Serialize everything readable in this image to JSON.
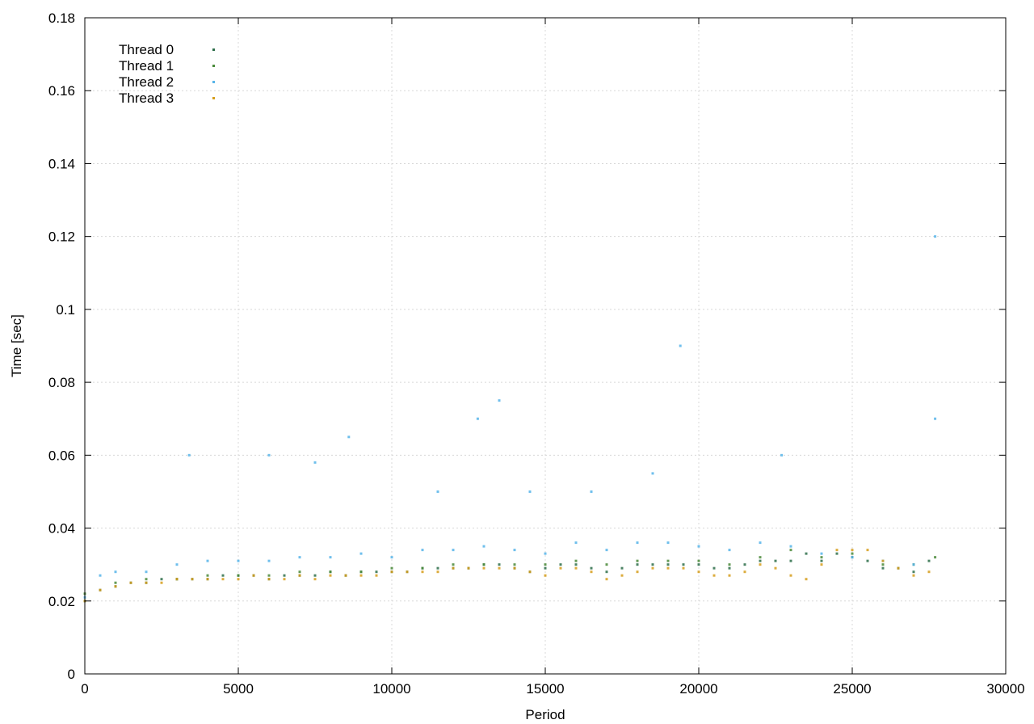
{
  "chart_data": {
    "type": "scatter",
    "title": "",
    "xlabel": "Period",
    "ylabel": "Time [sec]",
    "xlim": [
      0,
      30000
    ],
    "ylim": [
      0,
      0.18
    ],
    "x_ticks": [
      0,
      5000,
      10000,
      15000,
      20000,
      25000,
      30000
    ],
    "x_tick_labels": [
      "0",
      "5000",
      "10000",
      "15000",
      "20000",
      "25000",
      "30000"
    ],
    "y_ticks": [
      0,
      0.02,
      0.04,
      0.06,
      0.08,
      0.1,
      0.12,
      0.14,
      0.16,
      0.18
    ],
    "y_tick_labels": [
      "0",
      "0.02",
      "0.04",
      "0.06",
      "0.08",
      "0.1",
      "0.12",
      "0.14",
      "0.16",
      "0.18"
    ],
    "grid": true,
    "legend_position": "top-left",
    "series": [
      {
        "name": "Thread 0",
        "color": "#2e6e4a",
        "points": [
          [
            0,
            0.02
          ],
          [
            500,
            0.023
          ],
          [
            1000,
            0.024
          ],
          [
            1500,
            0.025
          ],
          [
            2000,
            0.025
          ],
          [
            2500,
            0.026
          ],
          [
            3000,
            0.026
          ],
          [
            3500,
            0.026
          ],
          [
            4000,
            0.026
          ],
          [
            4500,
            0.027
          ],
          [
            5000,
            0.027
          ],
          [
            5500,
            0.027
          ],
          [
            6000,
            0.026
          ],
          [
            6500,
            0.027
          ],
          [
            7000,
            0.027
          ],
          [
            7500,
            0.027
          ],
          [
            8000,
            0.028
          ],
          [
            8500,
            0.027
          ],
          [
            9000,
            0.028
          ],
          [
            9500,
            0.028
          ],
          [
            10000,
            0.028
          ],
          [
            10500,
            0.028
          ],
          [
            11000,
            0.029
          ],
          [
            11500,
            0.029
          ],
          [
            12000,
            0.029
          ],
          [
            12500,
            0.029
          ],
          [
            13000,
            0.03
          ],
          [
            13500,
            0.03
          ],
          [
            14000,
            0.029
          ],
          [
            14500,
            0.028
          ],
          [
            15000,
            0.029
          ],
          [
            15500,
            0.03
          ],
          [
            16000,
            0.03
          ],
          [
            16500,
            0.029
          ],
          [
            17000,
            0.028
          ],
          [
            17500,
            0.029
          ],
          [
            18000,
            0.03
          ],
          [
            18500,
            0.03
          ],
          [
            19000,
            0.03
          ],
          [
            19500,
            0.03
          ],
          [
            20000,
            0.03
          ],
          [
            20500,
            0.029
          ],
          [
            21000,
            0.029
          ],
          [
            21500,
            0.03
          ],
          [
            22000,
            0.031
          ],
          [
            22500,
            0.031
          ],
          [
            23000,
            0.031
          ],
          [
            23500,
            0.033
          ],
          [
            24000,
            0.031
          ],
          [
            24500,
            0.033
          ],
          [
            25000,
            0.032
          ],
          [
            25500,
            0.031
          ],
          [
            26000,
            0.029
          ],
          [
            26500,
            0.029
          ],
          [
            27000,
            0.028
          ],
          [
            27500,
            0.031
          ]
        ]
      },
      {
        "name": "Thread 1",
        "color": "#4a8a3a",
        "points": [
          [
            0,
            0.022
          ],
          [
            1000,
            0.025
          ],
          [
            2000,
            0.026
          ],
          [
            3000,
            0.026
          ],
          [
            4000,
            0.027
          ],
          [
            5000,
            0.027
          ],
          [
            6000,
            0.027
          ],
          [
            7000,
            0.028
          ],
          [
            8000,
            0.028
          ],
          [
            9000,
            0.028
          ],
          [
            10000,
            0.029
          ],
          [
            11000,
            0.029
          ],
          [
            12000,
            0.03
          ],
          [
            13000,
            0.03
          ],
          [
            14000,
            0.03
          ],
          [
            15000,
            0.03
          ],
          [
            16000,
            0.031
          ],
          [
            17000,
            0.03
          ],
          [
            18000,
            0.031
          ],
          [
            19000,
            0.031
          ],
          [
            20000,
            0.031
          ],
          [
            21000,
            0.03
          ],
          [
            22000,
            0.032
          ],
          [
            23000,
            0.034
          ],
          [
            24000,
            0.032
          ],
          [
            25000,
            0.033
          ],
          [
            26000,
            0.03
          ],
          [
            27000,
            0.03
          ],
          [
            27700,
            0.032
          ]
        ]
      },
      {
        "name": "Thread 2",
        "color": "#56b4e9",
        "points": [
          [
            0,
            0.021
          ],
          [
            500,
            0.027
          ],
          [
            1000,
            0.028
          ],
          [
            2000,
            0.028
          ],
          [
            3000,
            0.03
          ],
          [
            3400,
            0.06
          ],
          [
            4000,
            0.031
          ],
          [
            5000,
            0.031
          ],
          [
            6000,
            0.031
          ],
          [
            6000,
            0.06
          ],
          [
            7000,
            0.032
          ],
          [
            7500,
            0.058
          ],
          [
            8000,
            0.032
          ],
          [
            8600,
            0.065
          ],
          [
            9000,
            0.033
          ],
          [
            10000,
            0.032
          ],
          [
            11000,
            0.034
          ],
          [
            11500,
            0.05
          ],
          [
            12000,
            0.034
          ],
          [
            12800,
            0.07
          ],
          [
            13000,
            0.035
          ],
          [
            13500,
            0.075
          ],
          [
            14000,
            0.034
          ],
          [
            14500,
            0.05
          ],
          [
            15000,
            0.033
          ],
          [
            16000,
            0.036
          ],
          [
            16500,
            0.05
          ],
          [
            17000,
            0.034
          ],
          [
            18000,
            0.036
          ],
          [
            18500,
            0.055
          ],
          [
            19000,
            0.036
          ],
          [
            19400,
            0.09
          ],
          [
            20000,
            0.035
          ],
          [
            21000,
            0.034
          ],
          [
            22000,
            0.036
          ],
          [
            22700,
            0.06
          ],
          [
            23000,
            0.035
          ],
          [
            24000,
            0.033
          ],
          [
            25000,
            0.032
          ],
          [
            26000,
            0.031
          ],
          [
            27000,
            0.03
          ],
          [
            27700,
            0.07
          ],
          [
            27700,
            0.12
          ]
        ]
      },
      {
        "name": "Thread 3",
        "color": "#d69e1c",
        "points": [
          [
            0,
            0.02
          ],
          [
            500,
            0.023
          ],
          [
            1000,
            0.024
          ],
          [
            1500,
            0.025
          ],
          [
            2000,
            0.025
          ],
          [
            2500,
            0.025
          ],
          [
            3000,
            0.026
          ],
          [
            3500,
            0.026
          ],
          [
            4000,
            0.026
          ],
          [
            4500,
            0.026
          ],
          [
            5000,
            0.026
          ],
          [
            5500,
            0.027
          ],
          [
            6000,
            0.026
          ],
          [
            6500,
            0.026
          ],
          [
            7000,
            0.027
          ],
          [
            7500,
            0.026
          ],
          [
            8000,
            0.027
          ],
          [
            8500,
            0.027
          ],
          [
            9000,
            0.027
          ],
          [
            9500,
            0.027
          ],
          [
            10000,
            0.028
          ],
          [
            10500,
            0.028
          ],
          [
            11000,
            0.028
          ],
          [
            11500,
            0.028
          ],
          [
            12000,
            0.029
          ],
          [
            12500,
            0.029
          ],
          [
            13000,
            0.029
          ],
          [
            13500,
            0.029
          ],
          [
            14000,
            0.029
          ],
          [
            14500,
            0.028
          ],
          [
            15000,
            0.027
          ],
          [
            15500,
            0.029
          ],
          [
            16000,
            0.029
          ],
          [
            16500,
            0.028
          ],
          [
            17000,
            0.026
          ],
          [
            17500,
            0.027
          ],
          [
            18000,
            0.028
          ],
          [
            18500,
            0.029
          ],
          [
            19000,
            0.029
          ],
          [
            19500,
            0.029
          ],
          [
            20000,
            0.028
          ],
          [
            20500,
            0.027
          ],
          [
            21000,
            0.027
          ],
          [
            21500,
            0.028
          ],
          [
            22000,
            0.03
          ],
          [
            22500,
            0.029
          ],
          [
            23000,
            0.027
          ],
          [
            23500,
            0.026
          ],
          [
            24000,
            0.03
          ],
          [
            24500,
            0.034
          ],
          [
            25000,
            0.034
          ],
          [
            25500,
            0.034
          ],
          [
            26000,
            0.031
          ],
          [
            26500,
            0.029
          ],
          [
            27000,
            0.027
          ],
          [
            27500,
            0.028
          ]
        ]
      }
    ]
  }
}
